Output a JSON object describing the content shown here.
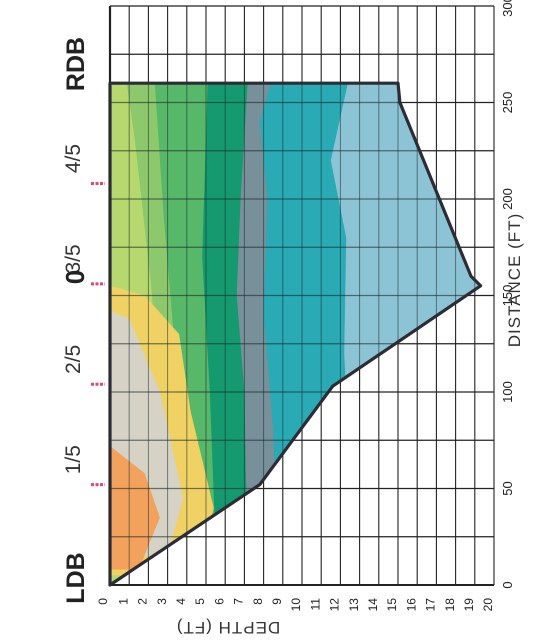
{
  "chart_data": {
    "type": "area",
    "title": "0",
    "xlabel": "DISTANCE (FT)",
    "ylabel": "DEPTH (FT)",
    "xlim": [
      0,
      300
    ],
    "ylim": [
      0,
      20
    ],
    "x_ticks": [
      0,
      50,
      100,
      150,
      200,
      250,
      300
    ],
    "y_ticks": [
      1,
      2,
      3,
      4,
      5,
      6,
      7,
      8,
      9,
      10,
      11,
      12,
      13,
      14,
      15,
      16,
      17,
      18,
      19,
      20
    ],
    "grid": true,
    "bank_labels": {
      "left": "LDB",
      "right": "RDB"
    },
    "stations": [
      {
        "label": "1/5",
        "x": 52
      },
      {
        "label": "2/5",
        "x": 104
      },
      {
        "label": "3/5",
        "x": 156
      },
      {
        "label": "4/5",
        "x": 208
      }
    ],
    "bed_profile": {
      "x": [
        0,
        52,
        103,
        155,
        160,
        250,
        260,
        260
      ],
      "depth": [
        0,
        7.8,
        11.6,
        19.3,
        18.8,
        15.1,
        15.0,
        0
      ]
    },
    "colors": {
      "orange": "#f2a25c",
      "light_gray": "#d6d3c6",
      "yellow": "#f0d264",
      "light_green": "#b6d86e",
      "green": "#8dc86c",
      "mid_green": "#58b86a",
      "dark_green": "#149a6e",
      "gray": "#77909a",
      "teal": "#29aab4",
      "light_blue": "#8cc4d6",
      "outline": "#2c2c34",
      "station_mark": "#d8487a"
    }
  }
}
